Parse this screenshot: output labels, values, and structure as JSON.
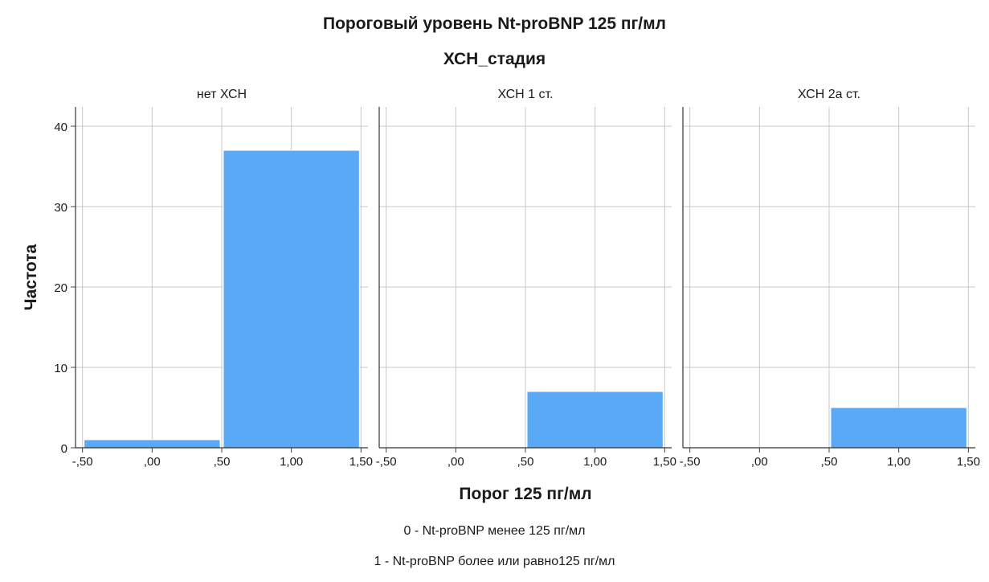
{
  "chart_data": {
    "type": "bar",
    "title": "Пороговый уровень Nt-proBNP 125 пг/мл",
    "facet_label": "ХСН_стадия",
    "xlabel": "Порог 125 пг/мл",
    "ylabel": "Частота",
    "xlim": [
      -0.55,
      1.55
    ],
    "ylim": [
      0,
      40
    ],
    "xticks": [
      -0.5,
      0.0,
      0.5,
      1.0,
      1.5
    ],
    "xtick_labels": [
      "-,50",
      ",00",
      ",50",
      "1,00",
      "1,50"
    ],
    "yticks": [
      0,
      10,
      20,
      30,
      40
    ],
    "ytick_labels": [
      "0",
      "10",
      "20",
      "30",
      "40"
    ],
    "grid": true,
    "bar_color": "#5aa9f6",
    "panels": [
      {
        "name": "нет ХСН",
        "bins": [
          {
            "x_start": -0.5,
            "x_end": 0.5,
            "value": 1
          },
          {
            "x_start": 0.5,
            "x_end": 1.5,
            "value": 37
          }
        ]
      },
      {
        "name": "ХСН 1 ст.",
        "bins": [
          {
            "x_start": -0.5,
            "x_end": 0.5,
            "value": 0
          },
          {
            "x_start": 0.5,
            "x_end": 1.5,
            "value": 7
          }
        ]
      },
      {
        "name": "ХСН 2а ст.",
        "bins": [
          {
            "x_start": -0.5,
            "x_end": 0.5,
            "value": 0
          },
          {
            "x_start": 0.5,
            "x_end": 1.5,
            "value": 5
          }
        ]
      }
    ]
  },
  "notes": [
    "0 - Nt-proBNP менее 125 пг/мл",
    "1 - Nt-proBNP более или равно125 пг/мл"
  ]
}
